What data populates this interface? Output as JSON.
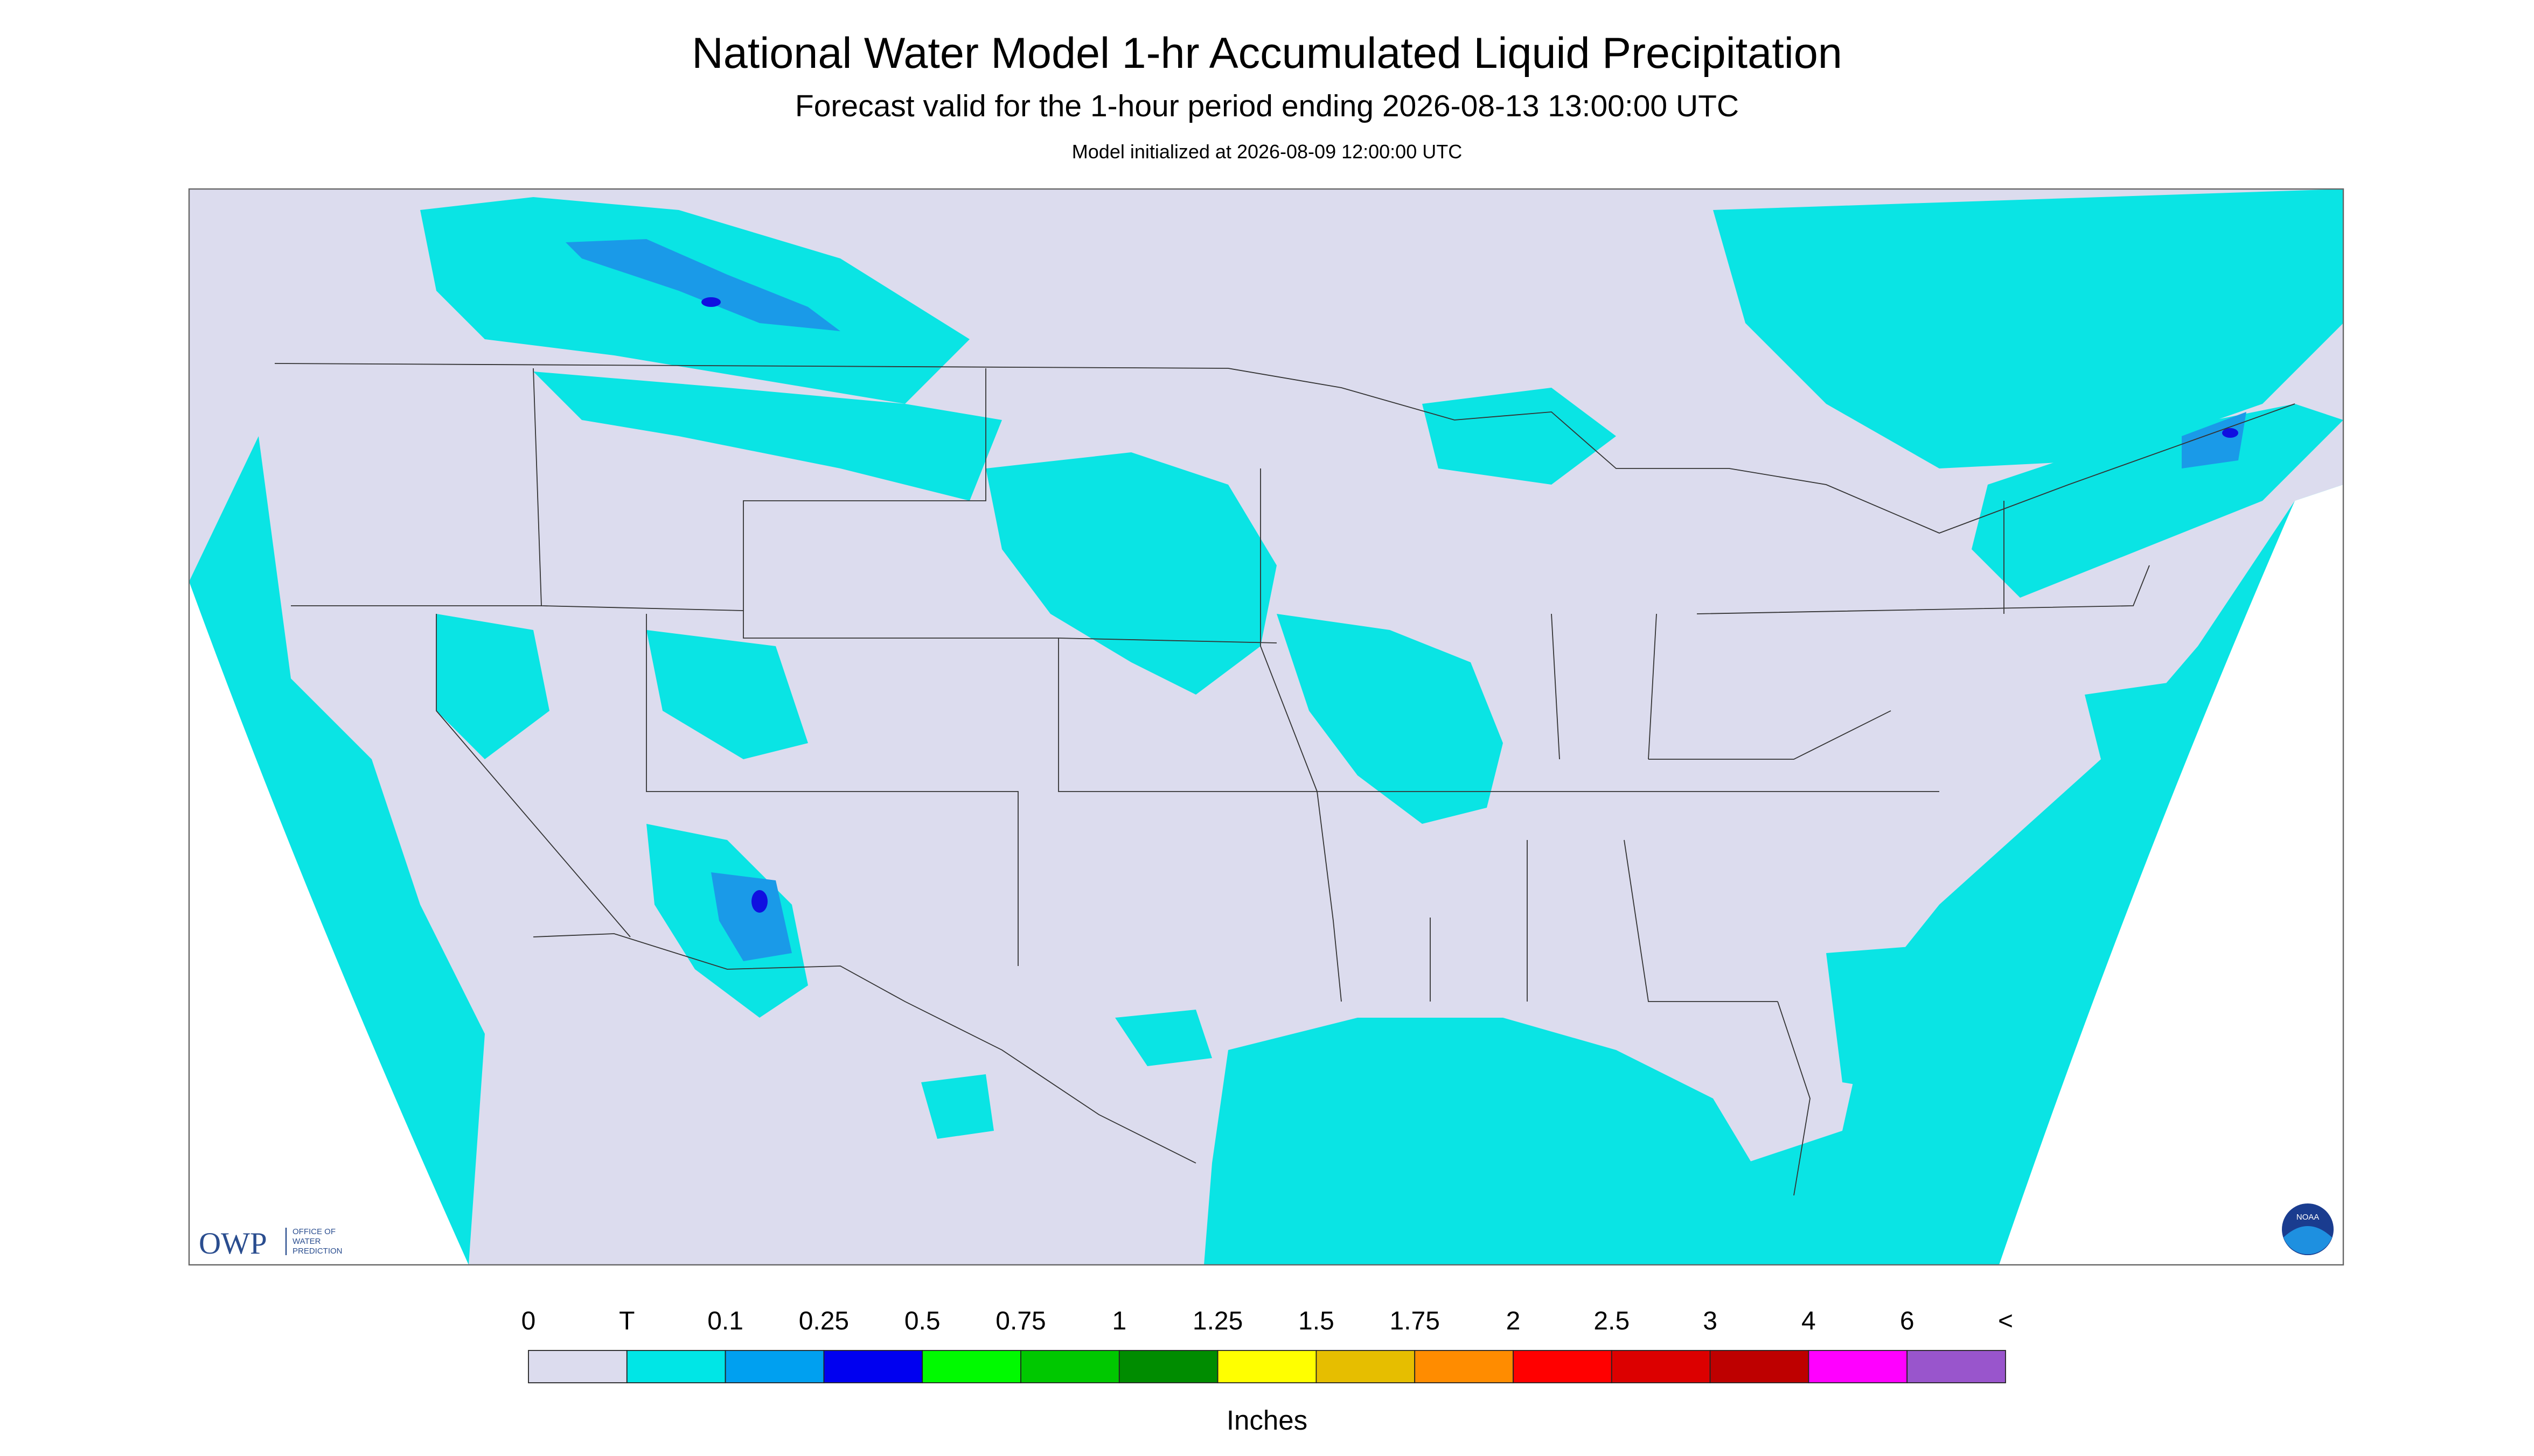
{
  "header": {
    "title": "National Water Model 1-hr Accumulated Liquid Precipitation",
    "subtitle": "Forecast valid for the 1-hour period ending 2026-08-13 13:00:00 UTC",
    "note": "Model initialized at 2026-08-09 12:00:00 UTC"
  },
  "logo": {
    "text": "OWP",
    "subtext": [
      "OFFICE OF",
      "WATER",
      "PREDICTION"
    ],
    "badge": "NOAA"
  },
  "legend": {
    "labels": [
      "0",
      "T",
      "0.1",
      "0.25",
      "0.5",
      "0.75",
      "1",
      "1.25",
      "1.5",
      "1.75",
      "2",
      "2.5",
      "3",
      "4",
      "6",
      "<"
    ],
    "colors": [
      "#dcdcee",
      "#00e6e6",
      "#00a0f0",
      "#0000f0",
      "#00fa00",
      "#00c800",
      "#008c00",
      "#ffff00",
      "#e6be00",
      "#ff8c00",
      "#ff0000",
      "#dc0000",
      "#be0000",
      "#ff00ff",
      "#9955cc"
    ],
    "unit": "Inches"
  }
}
